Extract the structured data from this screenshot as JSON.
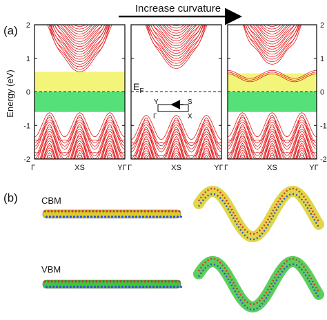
{
  "header": {
    "arrow_label": "Increase curvature"
  },
  "panel_a": {
    "label": "(a)",
    "ylabel": "Energy (eV)",
    "ef_main": "E",
    "ef_sub": "F",
    "bz_inset": {
      "Y": "Y",
      "S": "S",
      "G": "Γ",
      "X": "X"
    }
  },
  "panel_b": {
    "label": "(b)",
    "cbm_label": "CBM",
    "vbm_label": "VBM"
  },
  "chart_data": [
    {
      "type": "line",
      "title": "",
      "ylabel": "Energy (eV)",
      "ylim": [
        -2,
        2
      ],
      "yticks": [
        -2,
        -1,
        0,
        1,
        2
      ],
      "xticks": [
        "Γ",
        "XS",
        "YΓ"
      ],
      "fermi_level": 0,
      "gap_highlights": [
        {
          "range": [
            0.0,
            0.6
          ],
          "color": "#f3f57a"
        },
        {
          "range": [
            -0.6,
            0.0
          ],
          "color": "#55e07a"
        }
      ]
    },
    {
      "type": "line",
      "title": "",
      "ylim": [
        -2,
        2
      ],
      "yticks": [
        -2,
        -1,
        0,
        1,
        2
      ],
      "xticks": [
        "Γ",
        "XS",
        "YΓ"
      ],
      "fermi_level": 0,
      "gap_highlights": []
    },
    {
      "type": "line",
      "title": "",
      "ylim": [
        -2,
        2
      ],
      "yticks": [
        -2,
        -1,
        0,
        1,
        2
      ],
      "xticks": [
        "Γ",
        "XS",
        "YΓ"
      ],
      "fermi_level": 0,
      "gap_highlights": [
        {
          "range": [
            0.0,
            0.55
          ],
          "color": "#f3f57a"
        },
        {
          "range": [
            -0.6,
            0.0
          ],
          "color": "#55e07a"
        }
      ]
    }
  ],
  "colors": {
    "bands": "#e41a1c",
    "cbm": "#d9cf2a",
    "vbm": "#3fc63f"
  }
}
